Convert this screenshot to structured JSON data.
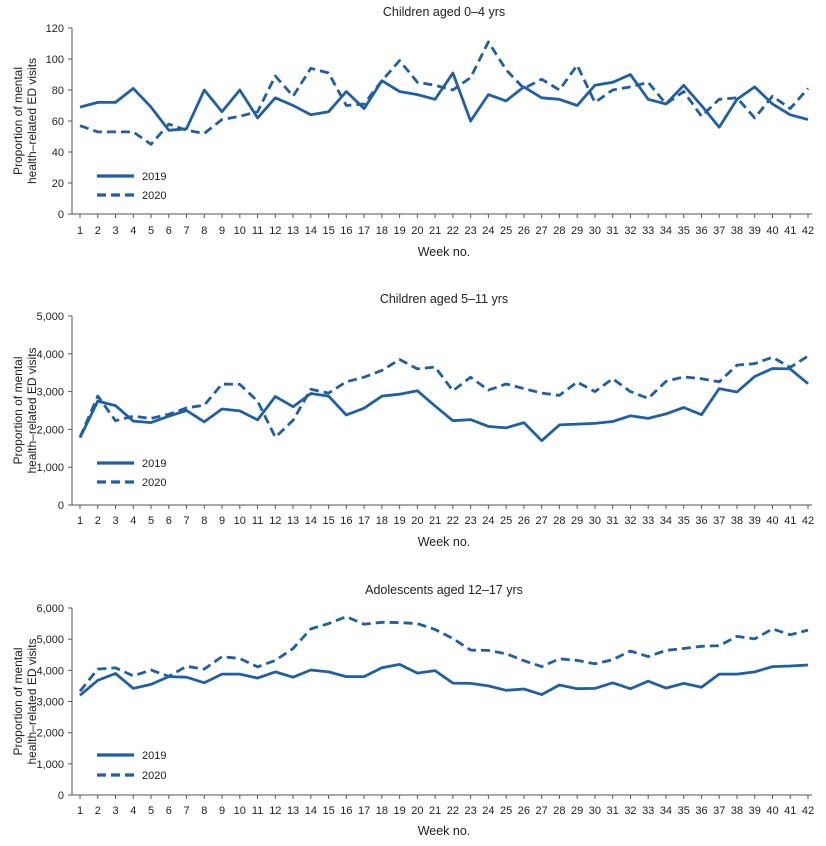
{
  "colors": {
    "line": "#1f5fa6",
    "axis": "#555555",
    "text": "#222222"
  },
  "chart_data": [
    {
      "type": "line",
      "title": "Children aged 0–4 yrs",
      "xlabel": "Week no.",
      "ylabel_lines": [
        "Proportion of mental",
        "health–related ED visits"
      ],
      "x": [
        1,
        2,
        3,
        4,
        5,
        6,
        7,
        8,
        9,
        10,
        11,
        12,
        13,
        14,
        15,
        16,
        17,
        18,
        19,
        20,
        21,
        22,
        23,
        24,
        25,
        26,
        27,
        28,
        29,
        30,
        31,
        32,
        33,
        34,
        35,
        36,
        37,
        38,
        39,
        40,
        41,
        42
      ],
      "ylim": [
        0,
        120
      ],
      "yticks": [
        0,
        20,
        40,
        60,
        80,
        100,
        120
      ],
      "ytick_labels": [
        "0",
        "20",
        "40",
        "60",
        "80",
        "100",
        "120"
      ],
      "grid": false,
      "legend_position": "bottom-left",
      "series": [
        {
          "name": "2019",
          "style": "solid",
          "values": [
            69,
            72,
            72,
            81,
            69,
            54,
            55,
            80,
            66,
            80,
            62,
            75,
            70,
            64,
            66,
            79,
            68,
            86,
            79,
            77,
            74,
            91,
            60,
            77,
            73,
            82,
            75,
            74,
            70,
            83,
            85,
            90,
            74,
            71,
            83,
            70,
            56,
            74,
            82,
            71,
            64,
            61
          ]
        },
        {
          "name": "2020",
          "style": "dashed",
          "values": [
            57,
            53,
            53,
            53,
            45,
            58,
            54,
            52,
            61,
            63,
            66,
            89,
            76,
            94,
            91,
            70,
            71,
            86,
            99,
            85,
            83,
            80,
            88,
            111,
            93,
            81,
            87,
            80,
            96,
            72,
            80,
            82,
            85,
            71,
            79,
            63,
            74,
            75,
            62,
            76,
            68,
            81
          ]
        }
      ]
    },
    {
      "type": "line",
      "title": "Children aged 5–11 yrs",
      "xlabel": "Week no.",
      "ylabel_lines": [
        "Proportion of mental",
        "health–related ED visits"
      ],
      "x": [
        1,
        2,
        3,
        4,
        5,
        6,
        7,
        8,
        9,
        10,
        11,
        12,
        13,
        14,
        15,
        16,
        17,
        18,
        19,
        20,
        21,
        22,
        23,
        24,
        25,
        26,
        27,
        28,
        29,
        30,
        31,
        32,
        33,
        34,
        35,
        36,
        37,
        38,
        39,
        40,
        41,
        42
      ],
      "ylim": [
        0,
        5000
      ],
      "yticks": [
        0,
        1000,
        2000,
        3000,
        4000,
        5000
      ],
      "ytick_labels": [
        "0",
        "1,000",
        "2,000",
        "3,000",
        "4,000",
        "5,000"
      ],
      "grid": false,
      "legend_position": "bottom-left",
      "series": [
        {
          "name": "2019",
          "style": "solid",
          "values": [
            1780,
            2750,
            2630,
            2220,
            2180,
            2350,
            2500,
            2200,
            2540,
            2490,
            2250,
            2870,
            2600,
            2950,
            2880,
            2380,
            2560,
            2880,
            2930,
            3020,
            2620,
            2230,
            2260,
            2080,
            2040,
            2180,
            1700,
            2120,
            2140,
            2160,
            2210,
            2360,
            2290,
            2410,
            2580,
            2390,
            3080,
            2990,
            3400,
            3610,
            3600,
            3210
          ]
        },
        {
          "name": "2020",
          "style": "dashed",
          "values": [
            1790,
            2880,
            2230,
            2350,
            2290,
            2400,
            2570,
            2640,
            3200,
            3190,
            2750,
            1790,
            2240,
            3060,
            2960,
            3260,
            3380,
            3560,
            3850,
            3600,
            3650,
            3020,
            3380,
            3040,
            3200,
            3080,
            2960,
            2900,
            3250,
            3000,
            3340,
            3000,
            2820,
            3270,
            3390,
            3340,
            3260,
            3700,
            3740,
            3910,
            3640,
            3940
          ]
        }
      ]
    },
    {
      "type": "line",
      "title": "Adolescents aged 12–17 yrs",
      "xlabel": "Week no.",
      "ylabel_lines": [
        "Proportion of mental",
        "health–related ED visits"
      ],
      "x": [
        1,
        2,
        3,
        4,
        5,
        6,
        7,
        8,
        9,
        10,
        11,
        12,
        13,
        14,
        15,
        16,
        17,
        18,
        19,
        20,
        21,
        22,
        23,
        24,
        25,
        26,
        27,
        28,
        29,
        30,
        31,
        32,
        33,
        34,
        35,
        36,
        37,
        38,
        39,
        40,
        41,
        42
      ],
      "ylim": [
        0,
        6000
      ],
      "yticks": [
        0,
        1000,
        2000,
        3000,
        4000,
        5000,
        6000
      ],
      "ytick_labels": [
        "0",
        "1,000",
        "2,000",
        "3,000",
        "4,000",
        "5,000",
        "6,000"
      ],
      "grid": false,
      "legend_position": "bottom-left",
      "series": [
        {
          "name": "2019",
          "style": "solid",
          "values": [
            3200,
            3680,
            3900,
            3420,
            3550,
            3800,
            3780,
            3600,
            3880,
            3880,
            3750,
            3950,
            3780,
            4010,
            3950,
            3800,
            3800,
            4080,
            4190,
            3910,
            3990,
            3590,
            3580,
            3500,
            3360,
            3400,
            3220,
            3530,
            3410,
            3420,
            3600,
            3410,
            3650,
            3430,
            3580,
            3460,
            3880,
            3880,
            3950,
            4120,
            4140,
            4170
          ]
        },
        {
          "name": "2020",
          "style": "dashed",
          "values": [
            3330,
            4040,
            4080,
            3820,
            4010,
            3810,
            4130,
            4040,
            4440,
            4380,
            4110,
            4320,
            4700,
            5330,
            5500,
            5720,
            5480,
            5540,
            5530,
            5500,
            5310,
            5020,
            4650,
            4640,
            4530,
            4310,
            4120,
            4370,
            4320,
            4210,
            4340,
            4620,
            4440,
            4640,
            4700,
            4770,
            4790,
            5090,
            5010,
            5330,
            5140,
            5290
          ]
        }
      ]
    }
  ]
}
